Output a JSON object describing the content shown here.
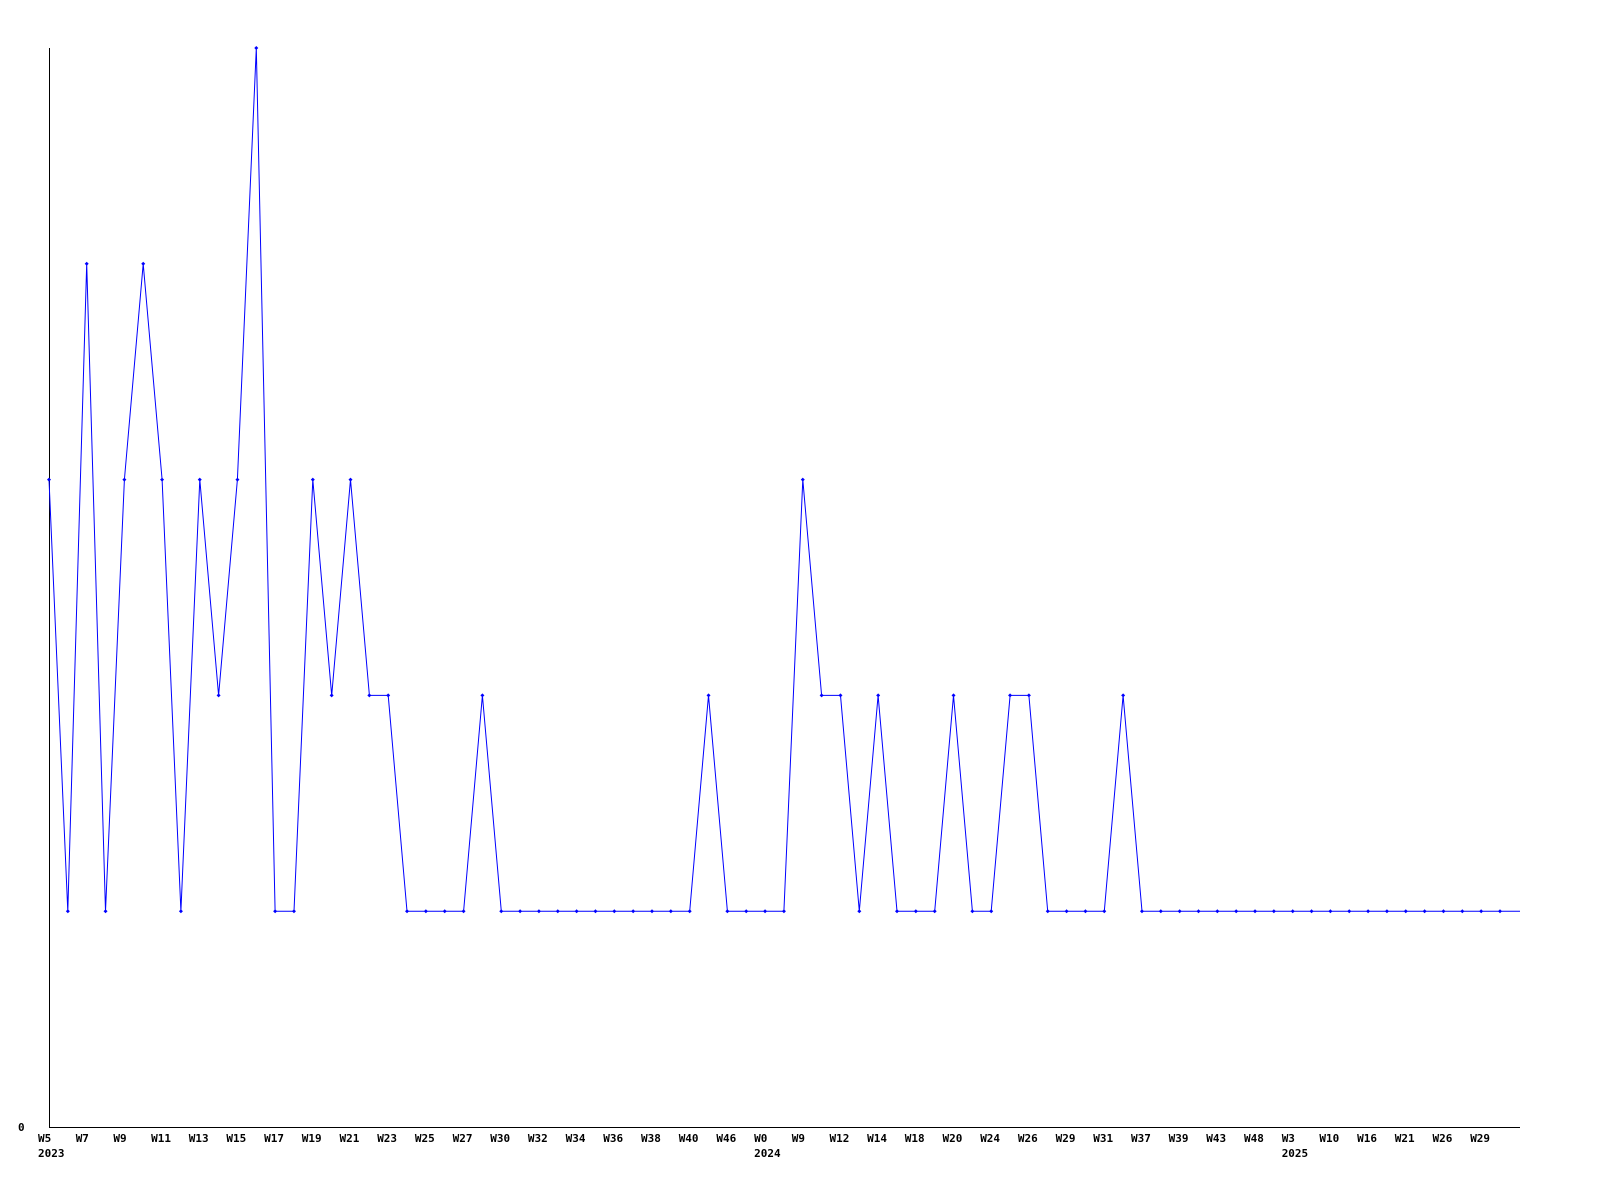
{
  "chart_data": {
    "type": "line",
    "title": "",
    "xlabel": "",
    "ylabel": "",
    "ylim": [
      0,
      5
    ],
    "y_tick_labels": [
      "0"
    ],
    "grid": false,
    "line_color": "#0000ff",
    "x_tick_labels": [
      "W5",
      "W7",
      "W9",
      "W11",
      "W13",
      "W15",
      "W17",
      "W19",
      "W21",
      "W23",
      "W25",
      "W27",
      "W30",
      "W32",
      "W34",
      "W36",
      "W38",
      "W40",
      "W46",
      "W0",
      "W9",
      "W12",
      "W14",
      "W18",
      "W20",
      "W24",
      "W26",
      "W29",
      "W31",
      "W37",
      "W39",
      "W43",
      "W48",
      "W3",
      "W10",
      "W16",
      "W21",
      "W26",
      "W29"
    ],
    "year_labels": [
      {
        "label": "2023",
        "at_tick": 0
      },
      {
        "label": "2024",
        "at_tick": 19
      },
      {
        "label": "2025",
        "at_tick": 33
      }
    ],
    "series": [
      {
        "values": [
          3,
          1,
          4,
          1,
          3,
          4,
          3,
          1,
          3,
          2,
          3,
          5,
          1,
          1,
          3,
          2,
          3,
          2,
          2,
          1,
          1,
          1,
          1,
          2,
          1,
          1,
          1,
          1,
          1,
          1,
          1,
          1,
          1,
          1,
          1,
          2,
          1,
          1,
          1,
          1,
          3,
          2,
          2,
          1,
          2,
          1,
          1,
          1,
          2,
          1,
          1,
          2,
          2,
          1,
          1,
          1,
          1,
          2,
          1,
          1,
          1,
          1,
          1,
          1,
          1,
          1,
          1,
          1,
          1,
          1,
          1,
          1,
          1,
          1,
          1,
          1,
          1,
          1
        ]
      }
    ]
  }
}
